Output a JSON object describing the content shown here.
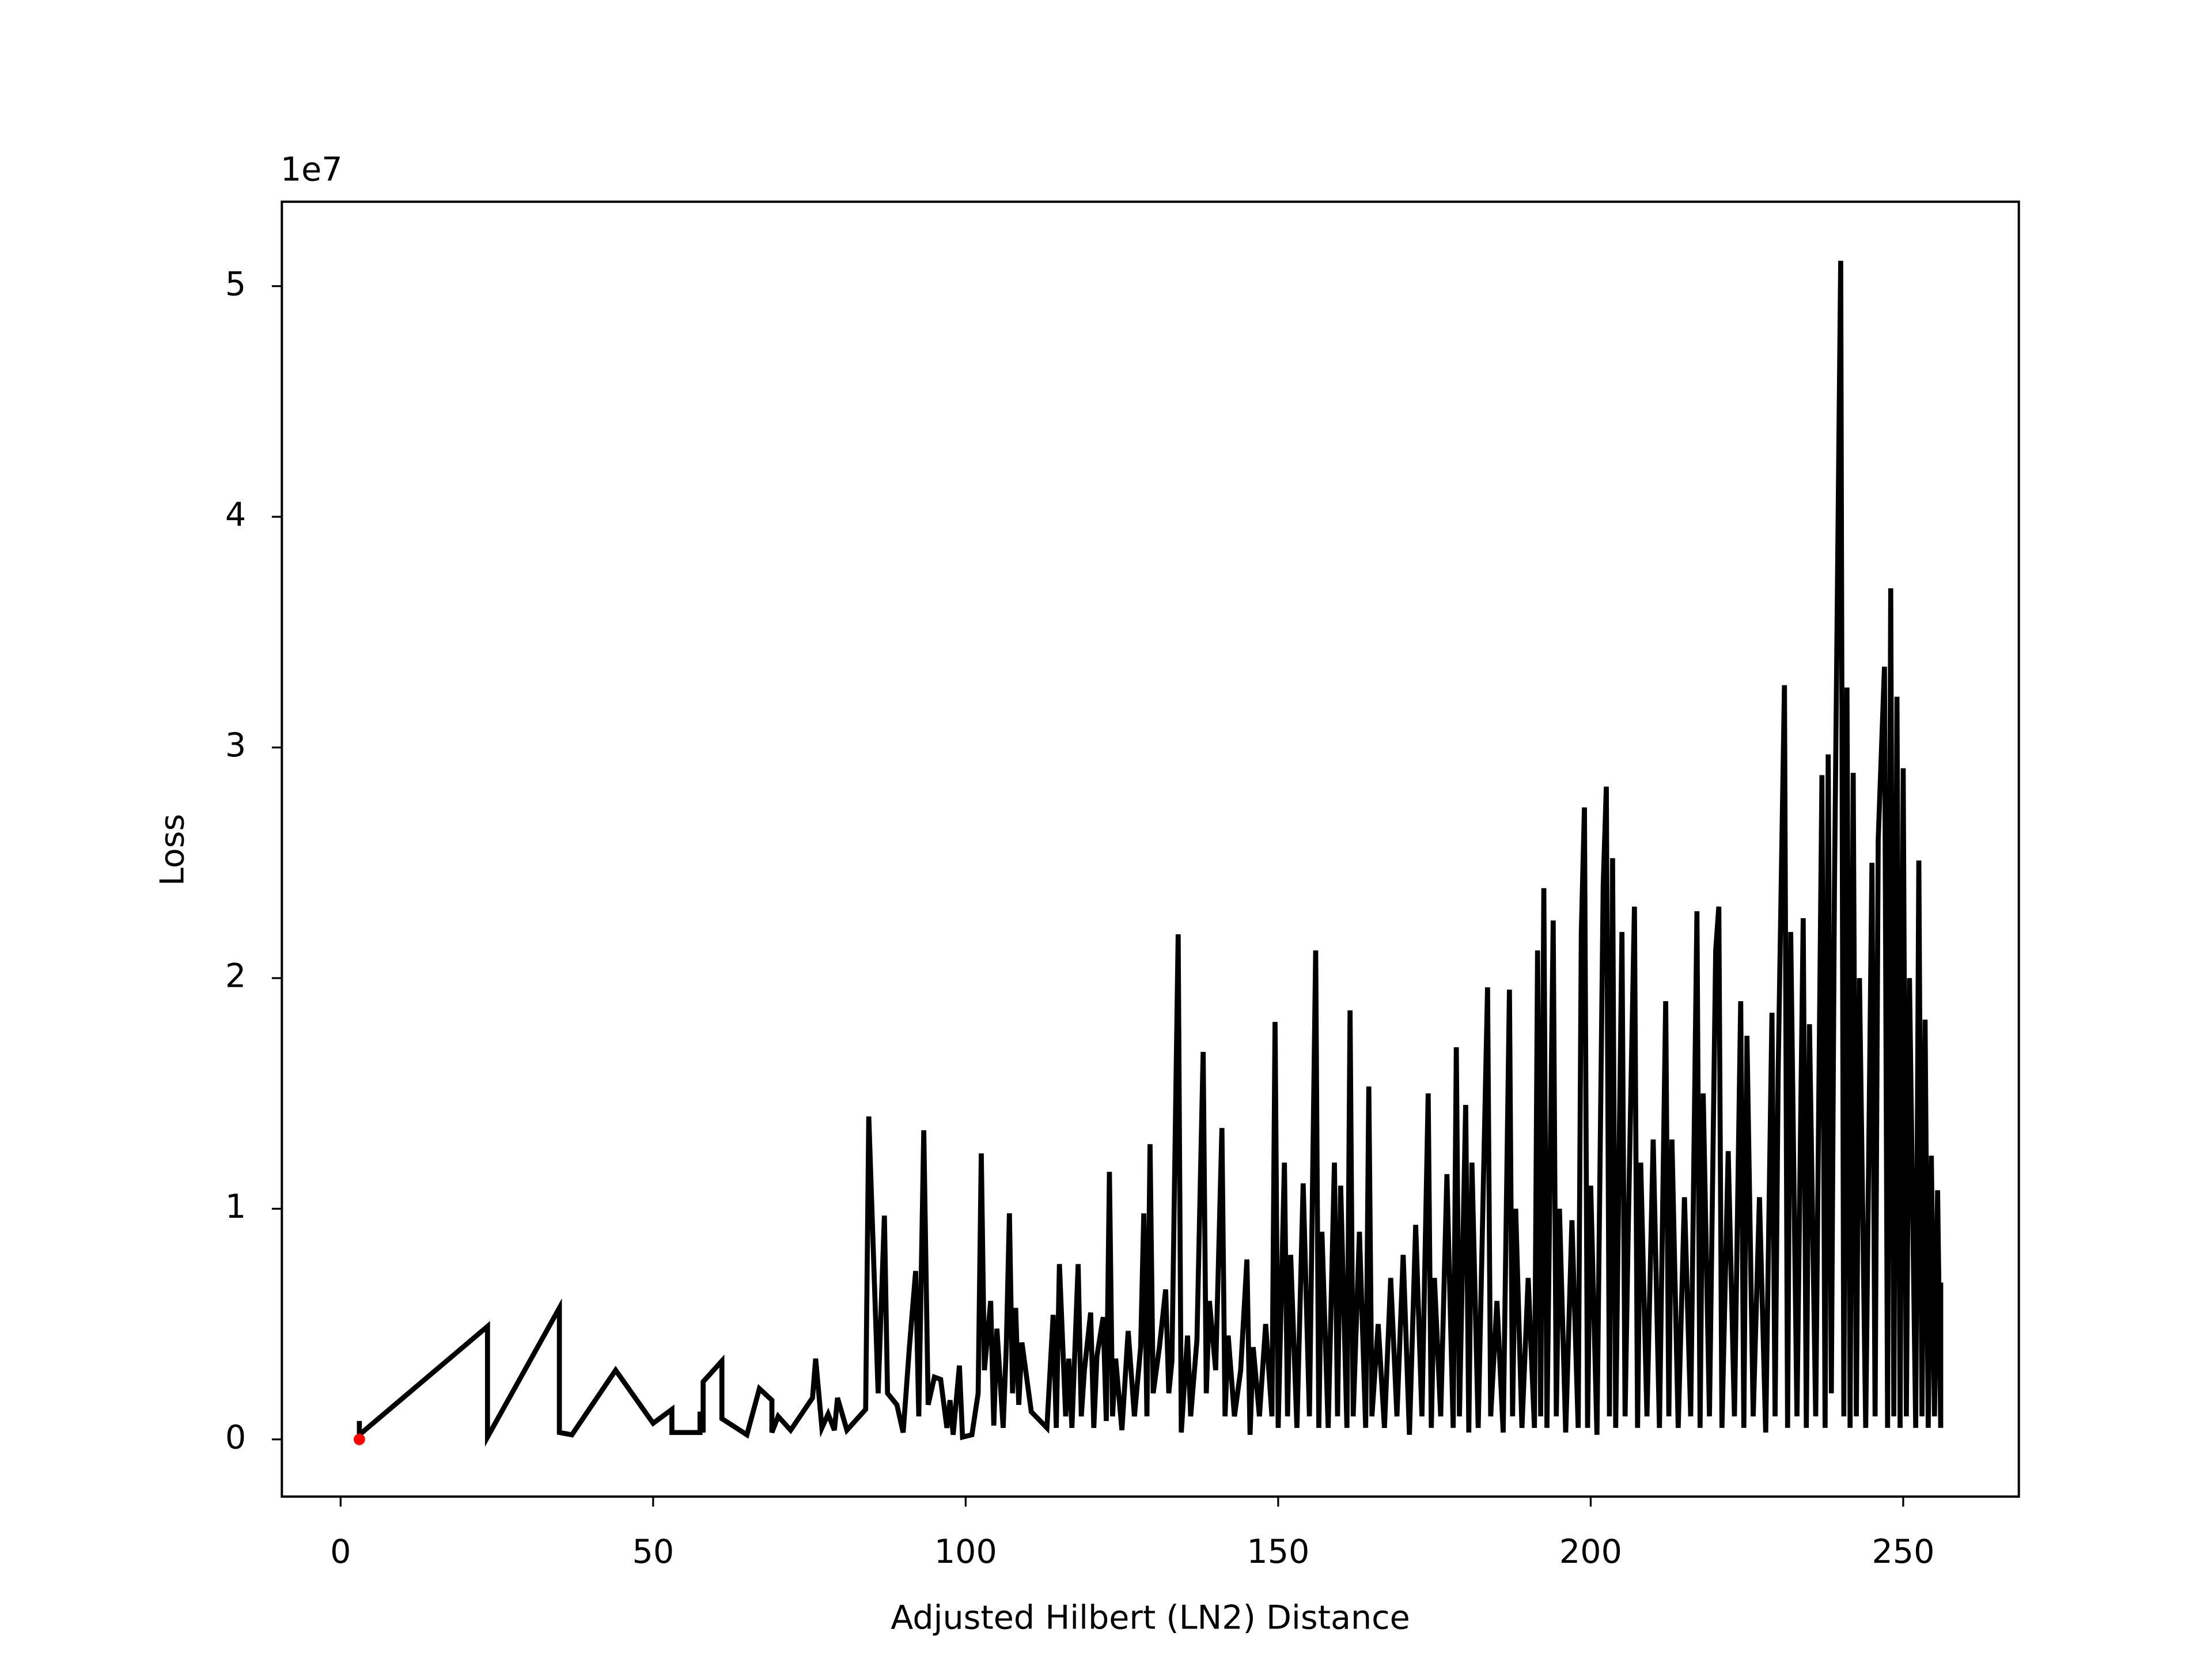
{
  "chart_data": {
    "type": "line",
    "x_label": "Adjusted Hilbert (LN2) Distance",
    "y_label": "Loss",
    "y_offset_text": "1e7",
    "xlim": [
      -9.4,
      268.5
    ],
    "ylim": [
      -0.248,
      5.366
    ],
    "xticks": [
      0,
      50,
      100,
      150,
      200,
      250
    ],
    "yticks": [
      0,
      1,
      2,
      3,
      4,
      5
    ],
    "series": [
      {
        "color": "#000000",
        "mode": "lines",
        "x": [
          3,
          3,
          23.5,
          23.5,
          35,
          35,
          37,
          44,
          50,
          53,
          53,
          57.5,
          57.5,
          58,
          58,
          61,
          61,
          65,
          67,
          69,
          69,
          70,
          72,
          75.5,
          76,
          77,
          78,
          79,
          79.5,
          81,
          84,
          84.5,
          86,
          87,
          87.5,
          89,
          90,
          91,
          92,
          92.5,
          93.3,
          94,
          95,
          96,
          97,
          97.5,
          98,
          99,
          99.5,
          101,
          102,
          102.5,
          103,
          104,
          104.5,
          105,
          106,
          106.5,
          107,
          107.5,
          108,
          108.5,
          109,
          110.5,
          113,
          114,
          114.5,
          115,
          116,
          116.5,
          117,
          118,
          118.5,
          119,
          120,
          120.5,
          121,
          122,
          122.5,
          123,
          123.5,
          124,
          125,
          126,
          127,
          128,
          128.5,
          129,
          129.5,
          130,
          131,
          132,
          132.5,
          133,
          134,
          134.5,
          135.5,
          136,
          137,
          138,
          138.5,
          139,
          140,
          141,
          141.5,
          142,
          143,
          144,
          145,
          145.5,
          146,
          147,
          148,
          149,
          149.5,
          150,
          151,
          151.5,
          152,
          153,
          154,
          155,
          156,
          156.5,
          157,
          158,
          159,
          159.5,
          160,
          161,
          161.5,
          162,
          163,
          164,
          164.5,
          165,
          166,
          167,
          168,
          169,
          170,
          171,
          172,
          173,
          174,
          174.5,
          175,
          176,
          177,
          178,
          178.5,
          179,
          180,
          180.5,
          181,
          182,
          183.5,
          184,
          185,
          186,
          187,
          187.5,
          188,
          189,
          190,
          191,
          191.5,
          192,
          192.5,
          193,
          194,
          194.5,
          195,
          196,
          197,
          198,
          198.5,
          199,
          199.5,
          200,
          201,
          202,
          202.5,
          203,
          203.5,
          204,
          205,
          205.5,
          206,
          207,
          207.5,
          208,
          209,
          210,
          211,
          212,
          212.5,
          213,
          214,
          215,
          216,
          217,
          217.5,
          218,
          219,
          220,
          220.5,
          221,
          222,
          223,
          224,
          224.5,
          225,
          226,
          227,
          228,
          229,
          229.5,
          230,
          231,
          231.5,
          232,
          233,
          234,
          234.5,
          235,
          236,
          237,
          237.5,
          238,
          238.5,
          239,
          240,
          240.5,
          241,
          241.5,
          242,
          242.5,
          243,
          244,
          245,
          245.5,
          246,
          247,
          247.5,
          248,
          248.5,
          249,
          249.5,
          250,
          250.5,
          251,
          252,
          252.5,
          253,
          253.5,
          254,
          254.5,
          255,
          255.5,
          256,
          256,
          256
        ],
        "values": [
          0.08,
          0.02,
          0.49,
          0.01,
          0.57,
          0.03,
          0.02,
          0.3,
          0.07,
          0.13,
          0.03,
          0.03,
          0.12,
          0.03,
          0.25,
          0.34,
          0.09,
          0.02,
          0.22,
          0.17,
          0.03,
          0.1,
          0.04,
          0.18,
          0.35,
          0.05,
          0.11,
          0.04,
          0.18,
          0.04,
          0.13,
          1.4,
          0.2,
          0.97,
          0.2,
          0.15,
          0.03,
          0.4,
          0.73,
          0.1,
          1.34,
          0.15,
          0.27,
          0.26,
          0.05,
          0.17,
          0.02,
          0.32,
          0.01,
          0.02,
          0.2,
          1.24,
          0.3,
          0.6,
          0.06,
          0.48,
          0.05,
          0.4,
          0.98,
          0.2,
          0.57,
          0.15,
          0.42,
          0.12,
          0.05,
          0.54,
          0.05,
          0.76,
          0.1,
          0.35,
          0.05,
          0.76,
          0.1,
          0.3,
          0.55,
          0.05,
          0.36,
          0.53,
          0.08,
          1.16,
          0.1,
          0.35,
          0.04,
          0.47,
          0.1,
          0.4,
          0.98,
          0.1,
          1.28,
          0.2,
          0.4,
          0.65,
          0.2,
          0.34,
          2.19,
          0.03,
          0.45,
          0.1,
          0.43,
          1.68,
          0.2,
          0.6,
          0.3,
          1.35,
          0.1,
          0.45,
          0.1,
          0.3,
          0.78,
          0.02,
          0.4,
          0.1,
          0.5,
          0.1,
          1.81,
          0.05,
          1.2,
          0.1,
          0.8,
          0.05,
          1.11,
          0.1,
          2.12,
          0.05,
          0.9,
          0.05,
          1.2,
          0.1,
          1.1,
          0.05,
          1.86,
          0.1,
          0.9,
          0.05,
          1.53,
          0.1,
          0.5,
          0.05,
          0.7,
          0.1,
          0.8,
          0.02,
          0.93,
          0.1,
          1.5,
          0.05,
          0.7,
          0.1,
          1.15,
          0.05,
          1.7,
          0.1,
          1.45,
          0.03,
          1.2,
          0.05,
          1.96,
          0.1,
          0.6,
          0.03,
          1.95,
          0.1,
          1.0,
          0.05,
          0.7,
          0.05,
          2.12,
          0.1,
          2.39,
          0.05,
          2.25,
          0.1,
          1.0,
          0.03,
          0.95,
          0.05,
          2.2,
          2.74,
          0.05,
          1.1,
          0.02,
          2.4,
          2.83,
          0.1,
          2.52,
          0.05,
          2.2,
          0.1,
          0.9,
          2.31,
          0.05,
          1.2,
          0.1,
          1.3,
          0.05,
          1.9,
          0.1,
          1.3,
          0.05,
          1.05,
          0.1,
          2.29,
          0.05,
          1.5,
          0.1,
          2.12,
          2.31,
          0.05,
          1.25,
          0.1,
          1.9,
          0.05,
          1.75,
          0.1,
          1.05,
          0.03,
          1.85,
          0.1,
          1.6,
          3.27,
          0.05,
          2.2,
          0.1,
          2.26,
          0.05,
          1.8,
          0.1,
          2.88,
          0.05,
          2.97,
          0.2,
          2.4,
          5.11,
          0.1,
          3.26,
          0.05,
          2.89,
          0.1,
          2.0,
          0.05,
          2.5,
          0.1,
          2.6,
          3.35,
          0.05,
          3.69,
          0.1,
          3.22,
          0.05,
          2.91,
          0.1,
          2.0,
          0.05,
          2.51,
          0.1,
          1.82,
          0.05,
          1.23,
          0.1,
          1.08,
          0.05,
          0.68,
          0.1
        ]
      },
      {
        "color": "#ff0000",
        "mode": "markers",
        "x": [
          3
        ],
        "values": [
          0
        ]
      }
    ]
  }
}
